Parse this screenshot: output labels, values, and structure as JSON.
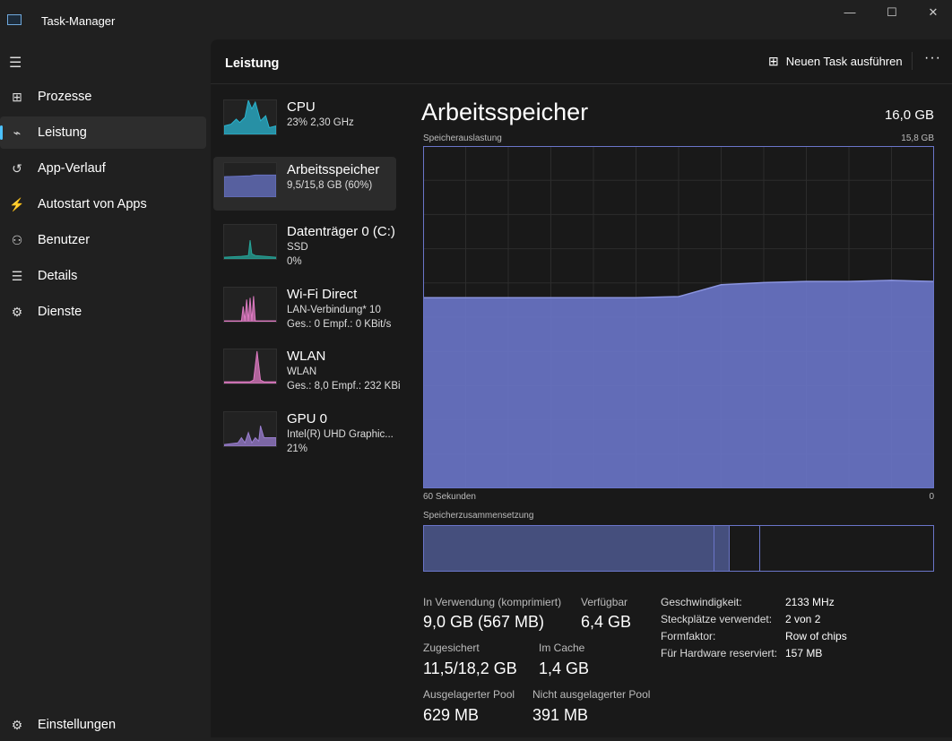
{
  "window": {
    "title": "Task-Manager",
    "minimize": "—",
    "maximize": "☐",
    "close": "✕"
  },
  "sidebar": {
    "items": [
      {
        "label": "Prozesse",
        "icon": "processes-icon",
        "glyph": "⊞"
      },
      {
        "label": "Leistung",
        "icon": "performance-icon",
        "glyph": "⌁"
      },
      {
        "label": "App-Verlauf",
        "icon": "history-icon",
        "glyph": "↺"
      },
      {
        "label": "Autostart von Apps",
        "icon": "startup-icon",
        "glyph": "⚡"
      },
      {
        "label": "Benutzer",
        "icon": "users-icon",
        "glyph": "⚇"
      },
      {
        "label": "Details",
        "icon": "details-icon",
        "glyph": "☰"
      },
      {
        "label": "Dienste",
        "icon": "services-icon",
        "glyph": "⚙"
      }
    ],
    "settings": {
      "label": "Einstellungen",
      "glyph": "⚙"
    }
  },
  "header": {
    "title": "Leistung",
    "new_task": "Neuen Task ausführen",
    "more": "···"
  },
  "devices": [
    {
      "name": "CPU",
      "line1": "23%  2,30 GHz",
      "color": "#29b6d1"
    },
    {
      "name": "Arbeitsspeicher",
      "line1": "9,5/15,8 GB (60%)",
      "color": "#6a75c9"
    },
    {
      "name": "Datenträger 0 (C:)",
      "line1": "SSD",
      "line2": "0%",
      "color": "#26a69a"
    },
    {
      "name": "Wi-Fi Direct",
      "line1": "LAN-Verbindung* 10",
      "line2": "Ges.: 0 Empf.: 0 KBit/s",
      "color": "#e07bc4"
    },
    {
      "name": "WLAN",
      "line1": "WLAN",
      "line2": "Ges.: 8,0 Empf.: 232 KBi",
      "color": "#e07bc4"
    },
    {
      "name": "GPU 0",
      "line1": "Intel(R) UHD Graphic...",
      "line2": "21%",
      "color": "#9b7fd1"
    }
  ],
  "memory": {
    "title": "Arbeitsspeicher",
    "total": "16,0 GB",
    "usage_label": "Speicherauslastung",
    "max_label": "15,8 GB",
    "x_left": "60 Sekunden",
    "x_right": "0",
    "composition_label": "Speicherzusammensetzung",
    "composition": {
      "in_use": 0.57,
      "modified": 0.03,
      "standby": 0.06,
      "free": 0.34
    },
    "stats": {
      "in_use_label": "In Verwendung (komprimiert)",
      "in_use": "9,0 GB (567 MB)",
      "available_label": "Verfügbar",
      "available": "6,4 GB",
      "committed_label": "Zugesichert",
      "committed": "11,5/18,2 GB",
      "cached_label": "Im Cache",
      "cached": "1,4 GB",
      "paged_label": "Ausgelagerter Pool",
      "paged": "629 MB",
      "nonpaged_label": "Nicht ausgelagerter Pool",
      "nonpaged": "391 MB"
    },
    "info": [
      {
        "k": "Geschwindigkeit:",
        "v": "2133 MHz"
      },
      {
        "k": "Steckplätze verwendet:",
        "v": "2 von 2"
      },
      {
        "k": "Formfaktor:",
        "v": "Row of chips"
      },
      {
        "k": "Für Hardware reserviert:",
        "v": "157 MB"
      }
    ]
  },
  "chart_data": {
    "type": "area",
    "title": "Speicherauslastung",
    "xlabel": "60 Sekunden",
    "ylim": [
      0,
      15.8
    ],
    "x": [
      60,
      55,
      50,
      45,
      40,
      35,
      30,
      25,
      20,
      15,
      10,
      5,
      0
    ],
    "values": [
      8.8,
      8.8,
      8.8,
      8.8,
      8.8,
      8.8,
      8.85,
      9.4,
      9.5,
      9.55,
      9.55,
      9.6,
      9.55
    ],
    "color": "#6a75c9"
  }
}
